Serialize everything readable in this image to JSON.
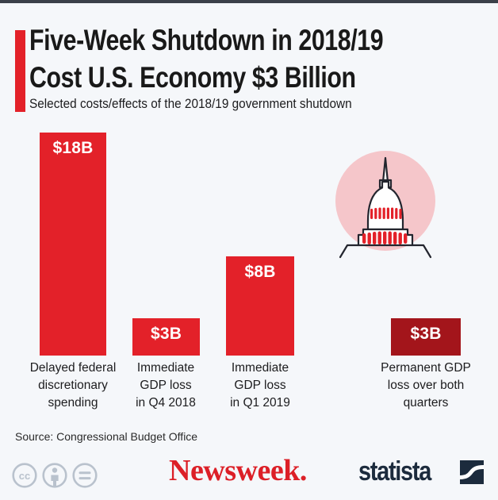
{
  "colors": {
    "bg": "#f5f7fa",
    "strip": "#3b4049",
    "red": "#e32129",
    "dark_red": "#a3151b",
    "pink": "#f5c6ca",
    "outline": "#23252e",
    "title_text": "#191919",
    "label_text": "#1c1c1e",
    "newsweek_red": "#dc1f27",
    "statista_navy": "#1c2b3d",
    "cc_gray": "#b9c2cd"
  },
  "header": {
    "title_line1": "Five-Week Shutdown in 2018/19",
    "title_line2": "Cost U.S. Economy $3 Billion",
    "subtitle": "Selected costs/effects of the 2018/19 government shutdown"
  },
  "chart_data": {
    "type": "bar",
    "title": "Five-Week Shutdown in 2018/19 Cost U.S. Economy $3 Billion",
    "subtitle": "Selected costs/effects of the 2018/19 government shutdown",
    "categories": [
      "Delayed federal discretionary spending",
      "Immediate GDP loss in Q4 2018",
      "Immediate GDP loss in Q1 2019",
      "Permanent GDP loss over both quarters"
    ],
    "category_lines": [
      [
        "Delayed federal",
        "discretionary",
        "spending"
      ],
      [
        "Immediate",
        "GDP loss",
        "in Q4 2018"
      ],
      [
        "Immediate",
        "GDP loss",
        "in Q1 2019"
      ],
      [
        "Permanent GDP",
        "loss over both",
        "quarters"
      ]
    ],
    "values": [
      18,
      3,
      8,
      3
    ],
    "value_labels": [
      "$18B",
      "$3B",
      "$8B",
      "$3B"
    ],
    "bar_colors": [
      "#e32129",
      "#e32129",
      "#e32129",
      "#a3151b"
    ],
    "unit": "billion U.S. dollars",
    "ylim": [
      0,
      18
    ],
    "grid": false,
    "legend": false
  },
  "decoration": {
    "capitol_icon": "us-capitol-building",
    "capitol_circle_color": "#f5c6ca",
    "capitol_window_color": "#e32129"
  },
  "footer": {
    "source": "Source: Congressional Budget Office",
    "license_icons": [
      "cc",
      "attribution",
      "no-derivatives"
    ],
    "newsweek_wordmark": "Newsweek.",
    "statista_wordmark": "statista"
  }
}
